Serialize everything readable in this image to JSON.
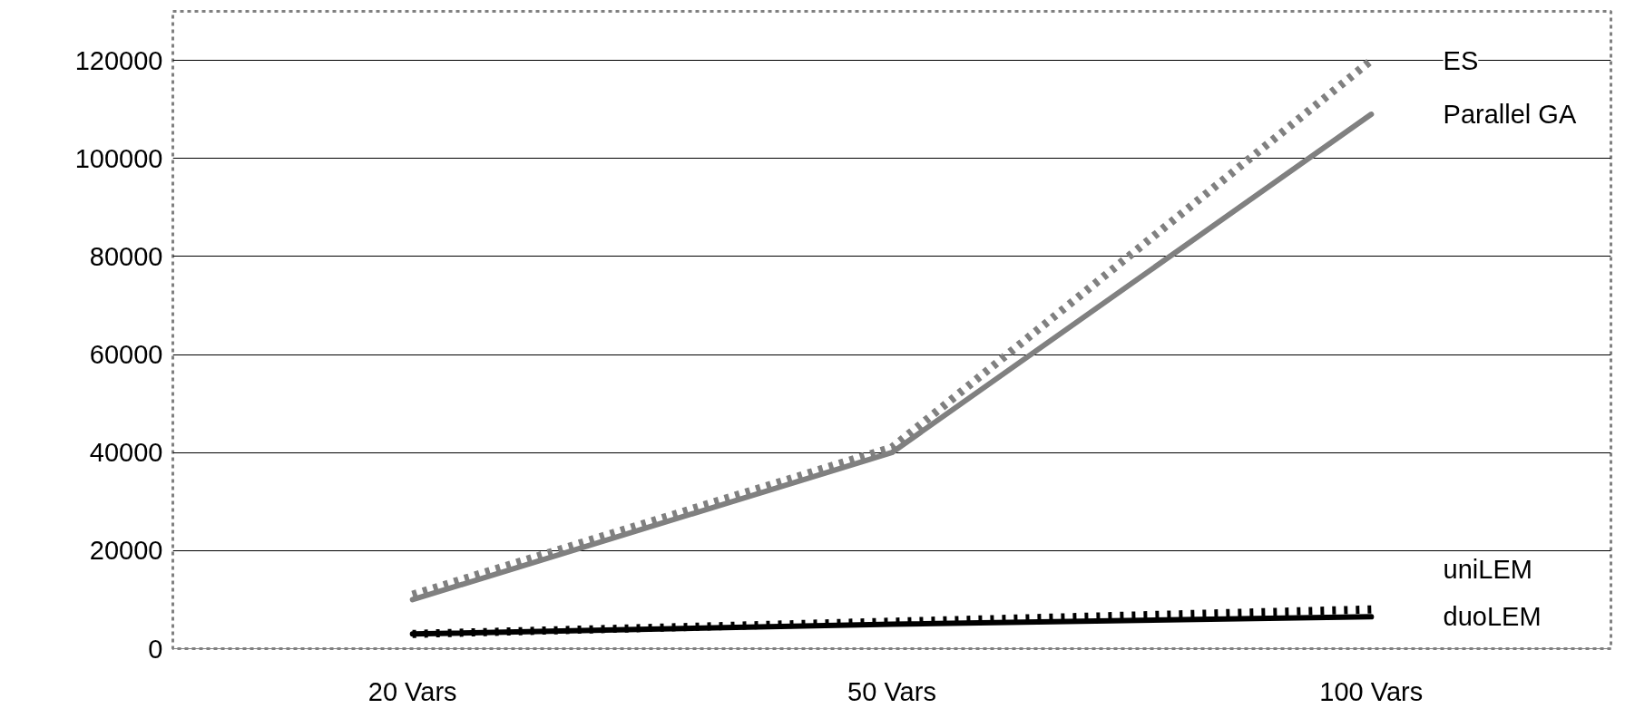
{
  "chart_data": {
    "type": "line",
    "categories": [
      "20 Vars",
      "50 Vars",
      "100 Vars"
    ],
    "ylim": [
      0,
      130000
    ],
    "yticks": [
      0,
      20000,
      40000,
      60000,
      80000,
      100000,
      120000
    ],
    "grid": "y",
    "marker": "none",
    "series": [
      {
        "name": "ES",
        "color": "#808080",
        "line_style": "dashed",
        "values": [
          11000,
          41000,
          120000
        ]
      },
      {
        "name": "Parallel GA",
        "color": "#808080",
        "line_style": "solid",
        "values": [
          10000,
          40000,
          109000
        ]
      },
      {
        "name": "uniLEM",
        "color": "#000000",
        "line_style": "dotted",
        "values": [
          3000,
          5500,
          8000
        ]
      },
      {
        "name": "duoLEM",
        "color": "#000000",
        "line_style": "solid",
        "values": [
          3000,
          5000,
          6500
        ]
      }
    ]
  }
}
